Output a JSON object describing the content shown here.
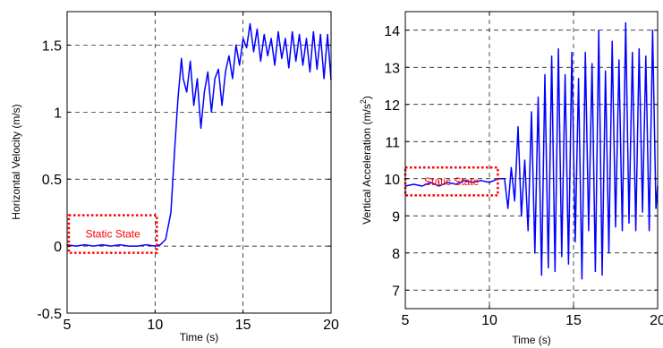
{
  "chart_data": [
    {
      "type": "line",
      "xlabel": "Time (s)",
      "ylabel": "Horizontal Velocity (m/s)",
      "xlim": [
        5,
        20
      ],
      "ylim": [
        -0.5,
        1.75
      ],
      "xticks": [
        "5",
        "10",
        "15",
        "20"
      ],
      "yticks": [
        "-0.5",
        "0",
        "0.5",
        "1",
        "1.5"
      ],
      "ytick_values": [
        -0.5,
        0,
        0.5,
        1,
        1.5
      ],
      "grid": true,
      "line_color": "#0000ff",
      "annotation": {
        "text": "Static State",
        "color": "#ff0000"
      },
      "annotation_box": {
        "x": [
          5.1,
          10.1
        ],
        "y": [
          -0.05,
          0.23
        ]
      },
      "series": [
        {
          "x": [
            5.0,
            5.5,
            6.0,
            6.5,
            7.0,
            7.5,
            8.0,
            8.5,
            9.0,
            9.5,
            10.0,
            10.3,
            10.6,
            10.9,
            11.1,
            11.3,
            11.5,
            11.6,
            11.8,
            12.0,
            12.2,
            12.4,
            12.6,
            12.8,
            13.0,
            13.2,
            13.4,
            13.6,
            13.8,
            14.0,
            14.2,
            14.4,
            14.6,
            14.8,
            15.0,
            15.2,
            15.4,
            15.6,
            15.8,
            16.0,
            16.2,
            16.4,
            16.6,
            16.8,
            17.0,
            17.2,
            17.4,
            17.6,
            17.8,
            18.0,
            18.2,
            18.4,
            18.6,
            18.8,
            19.0,
            19.2,
            19.4,
            19.6,
            19.8,
            20.0
          ],
          "y": [
            0.01,
            0.0,
            0.01,
            0.0,
            0.01,
            0.0,
            0.01,
            0.0,
            0.0,
            0.01,
            0.0,
            0.01,
            0.05,
            0.25,
            0.7,
            1.1,
            1.4,
            1.25,
            1.15,
            1.38,
            1.05,
            1.25,
            0.88,
            1.15,
            1.3,
            1.0,
            1.25,
            1.32,
            1.05,
            1.3,
            1.42,
            1.25,
            1.5,
            1.35,
            1.55,
            1.48,
            1.66,
            1.45,
            1.62,
            1.38,
            1.58,
            1.42,
            1.55,
            1.35,
            1.6,
            1.4,
            1.55,
            1.33,
            1.6,
            1.38,
            1.58,
            1.35,
            1.55,
            1.3,
            1.6,
            1.32,
            1.58,
            1.25,
            1.58,
            1.24
          ]
        }
      ]
    },
    {
      "type": "line",
      "xlabel": "Time (s)",
      "ylabel": "Vertical Acceleration (m/s",
      "ylabel_sup": "2",
      "ylabel_end": ")",
      "xlim": [
        5,
        20
      ],
      "ylim": [
        6.5,
        14.5
      ],
      "xticks": [
        "5",
        "10",
        "15",
        "20"
      ],
      "yticks": [
        "7",
        "8",
        "9",
        "10",
        "11",
        "12",
        "13",
        "14"
      ],
      "ytick_values": [
        7,
        8,
        9,
        10,
        11,
        12,
        13,
        14
      ],
      "grid": true,
      "line_color": "#0000ff",
      "annotation": {
        "text": "Static State",
        "color": "#ff0000"
      },
      "annotation_box": {
        "x": [
          5.0,
          10.5
        ],
        "y": [
          9.55,
          10.3
        ]
      },
      "series": [
        {
          "x": [
            5.0,
            5.5,
            6.0,
            6.5,
            7.0,
            7.5,
            8.0,
            8.5,
            9.0,
            9.5,
            10.0,
            10.5,
            10.9,
            11.1,
            11.3,
            11.5,
            11.7,
            11.9,
            12.1,
            12.3,
            12.5,
            12.7,
            12.9,
            13.1,
            13.3,
            13.5,
            13.7,
            13.9,
            14.1,
            14.3,
            14.5,
            14.7,
            14.9,
            15.1,
            15.3,
            15.5,
            15.7,
            15.9,
            16.1,
            16.3,
            16.5,
            16.7,
            16.9,
            17.1,
            17.3,
            17.5,
            17.7,
            17.9,
            18.1,
            18.3,
            18.5,
            18.7,
            18.9,
            19.1,
            19.3,
            19.5,
            19.7,
            19.9,
            20.0
          ],
          "y": [
            9.8,
            9.85,
            9.8,
            9.9,
            9.8,
            9.9,
            9.85,
            9.95,
            9.9,
            9.95,
            9.9,
            10.0,
            10.0,
            9.2,
            10.3,
            9.4,
            11.4,
            9.0,
            10.5,
            8.6,
            11.8,
            8.0,
            12.2,
            7.4,
            12.8,
            7.6,
            13.3,
            7.5,
            13.5,
            7.9,
            12.8,
            7.7,
            13.4,
            8.3,
            12.7,
            7.3,
            13.4,
            8.6,
            13.1,
            7.5,
            14.0,
            7.4,
            12.9,
            8.0,
            13.7,
            8.7,
            13.2,
            8.6,
            14.2,
            8.8,
            13.4,
            8.6,
            13.5,
            9.1,
            13.3,
            8.6,
            14.0,
            9.2,
            9.8
          ]
        }
      ]
    }
  ]
}
